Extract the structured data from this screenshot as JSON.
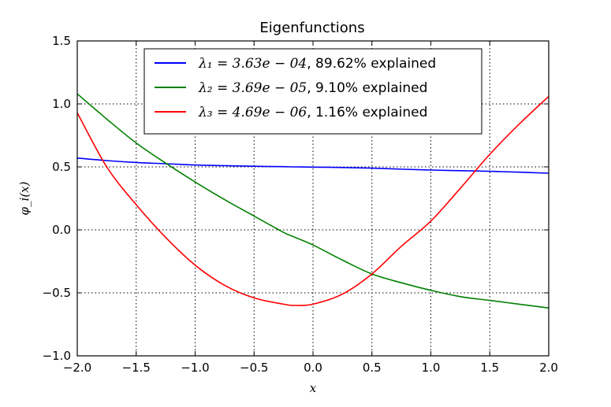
{
  "chart_data": {
    "type": "line",
    "title": "Eigenfunctions",
    "xlabel": "x",
    "ylabel": "φ_i(x)",
    "xlim": [
      -2.0,
      2.0
    ],
    "ylim": [
      -1.0,
      1.5
    ],
    "xticks": [
      -2.0,
      -1.5,
      -1.0,
      -0.5,
      0.0,
      0.5,
      1.0,
      1.5,
      2.0
    ],
    "xtick_labels": [
      "−2.0",
      "−1.5",
      "−1.0",
      "−0.5",
      "0.0",
      "0.5",
      "1.0",
      "1.5",
      "2.0"
    ],
    "yticks": [
      -1.0,
      -0.5,
      0.0,
      0.5,
      1.0,
      1.5
    ],
    "ytick_labels": [
      "−1.0",
      "−0.5",
      "0.0",
      "0.5",
      "1.0",
      "1.5"
    ],
    "grid": true,
    "legend_position": "top-center",
    "x": [
      -2.0,
      -1.75,
      -1.5,
      -1.25,
      -1.0,
      -0.75,
      -0.5,
      -0.25,
      -0.15,
      0.0,
      0.25,
      0.5,
      0.75,
      1.0,
      1.25,
      1.5,
      1.75,
      2.0
    ],
    "series": [
      {
        "name": "lambda1",
        "legend_math": "λ₁ = 3.63e − 04",
        "legend_suffix": ", 89.62% explained",
        "color": "#0000ff",
        "values": [
          0.57,
          0.55,
          0.535,
          0.525,
          0.515,
          0.51,
          0.505,
          0.502,
          0.5,
          0.498,
          0.495,
          0.49,
          0.482,
          0.475,
          0.47,
          0.465,
          0.458,
          0.45
        ]
      },
      {
        "name": "lambda2",
        "legend_math": "λ₂ = 3.69e − 05",
        "legend_suffix": ", 9.10% explained",
        "color": "#008000",
        "values": [
          1.08,
          0.88,
          0.69,
          0.53,
          0.38,
          0.24,
          0.11,
          -0.02,
          -0.06,
          -0.12,
          -0.24,
          -0.35,
          -0.42,
          -0.48,
          -0.53,
          -0.56,
          -0.59,
          -0.62
        ]
      },
      {
        "name": "lambda3",
        "legend_math": "λ₃ = 4.69e − 06",
        "legend_suffix": ", 1.16% explained",
        "color": "#ff0000",
        "values": [
          0.93,
          0.5,
          0.2,
          -0.06,
          -0.28,
          -0.44,
          -0.54,
          -0.59,
          -0.6,
          -0.59,
          -0.51,
          -0.35,
          -0.13,
          0.07,
          0.33,
          0.6,
          0.84,
          1.06
        ]
      }
    ]
  }
}
